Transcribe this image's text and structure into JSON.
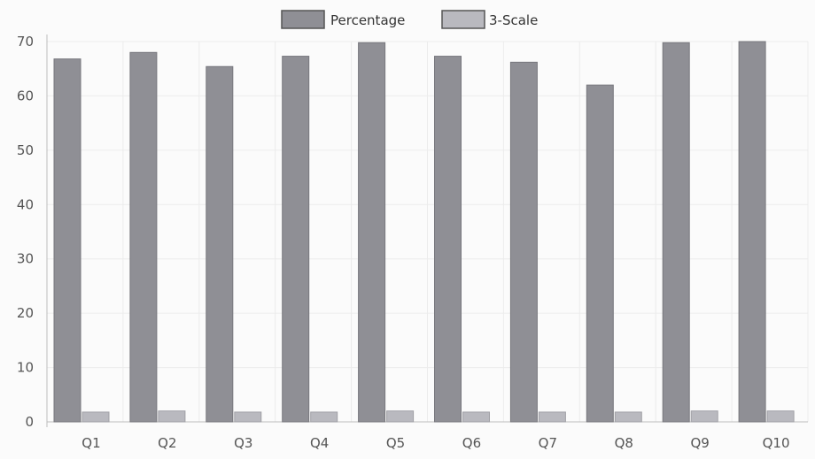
{
  "chart_data": {
    "type": "bar",
    "categories": [
      "Q1",
      "Q2",
      "Q3",
      "Q4",
      "Q5",
      "Q6",
      "Q7",
      "Q8",
      "Q9",
      "Q10"
    ],
    "series": [
      {
        "name": "Percentage",
        "values": [
          66.8,
          68.0,
          65.4,
          67.3,
          69.8,
          67.3,
          66.2,
          62.0,
          69.8,
          70.0
        ],
        "color": "#8f8f95",
        "stroke": "#77777d"
      },
      {
        "name": "3-Scale",
        "values": [
          1.8,
          2.0,
          1.8,
          1.8,
          2.0,
          1.8,
          1.8,
          1.8,
          2.0,
          2.0
        ],
        "color": "#b9b9bf",
        "stroke": "#a0a0a6"
      }
    ],
    "yticks": [
      0,
      10,
      20,
      30,
      40,
      50,
      60,
      70
    ],
    "ylim": [
      0,
      70
    ],
    "title": "",
    "xlabel": "",
    "ylabel": "",
    "grid": true,
    "legend": "top-center"
  }
}
